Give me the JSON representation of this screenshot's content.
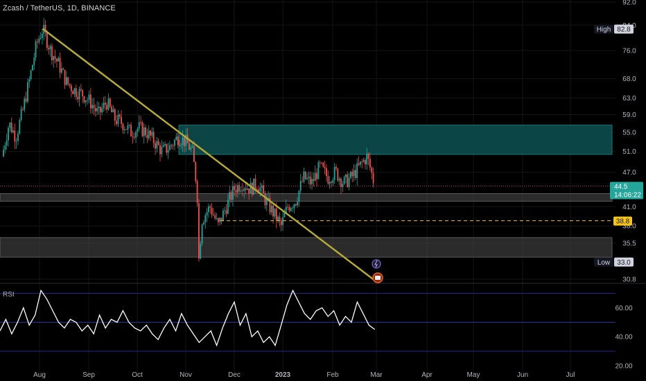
{
  "header": {
    "title": "Zcash / TetherUS, 1D, BINANCE"
  },
  "rsi": {
    "label": "RSI"
  },
  "badges": {
    "high_label": "High",
    "high_value": "82.8",
    "low_label": "Low",
    "low_value": "33.0",
    "last_price": "44.5",
    "countdown": "14:06:22",
    "level_value": "38.8"
  },
  "colors": {
    "background": "#000000",
    "up": "#26a69a",
    "down": "#ef5350",
    "zone_teal": "#0d4d4d",
    "zone_gray": "#3a3a3a",
    "trendline": "#b5a93a",
    "level_line": "#f5c518",
    "rsi_line": "#ffffff",
    "rsi_band_line": "#2c3e9e"
  },
  "chart_data": [
    {
      "type": "candlestick",
      "title": "Zcash / TetherUS, 1D, BINANCE",
      "y_ticks": [
        "92.0",
        "84.0",
        "76.0",
        "68.0",
        "63.0",
        "59.0",
        "55.0",
        "51.0",
        "47.0",
        "41.0",
        "38.0",
        "35.5",
        "30.8"
      ],
      "x_ticks": [
        "Aug",
        "Sep",
        "Oct",
        "Nov",
        "Dec",
        "2023",
        "Feb",
        "Mar",
        "Apr",
        "May",
        "Jun",
        "Jul"
      ],
      "ylim": [
        30.8,
        92.0
      ],
      "scale": "log",
      "close_path": [
        [
          "Jul 5",
          50
        ],
        [
          "Jul 10",
          57
        ],
        [
          "Jul 15",
          54
        ],
        [
          "Jul 20",
          60
        ],
        [
          "Jul 25",
          68
        ],
        [
          "Jul 30",
          78
        ],
        [
          "Aug 3",
          82.8
        ],
        [
          "Aug 8",
          76
        ],
        [
          "Aug 13",
          72
        ],
        [
          "Aug 18",
          67
        ],
        [
          "Aug 23",
          65
        ],
        [
          "Aug 28",
          64
        ],
        [
          "Sep 2",
          62
        ],
        [
          "Sep 7",
          59
        ],
        [
          "Sep 12",
          62
        ],
        [
          "Sep 17",
          58
        ],
        [
          "Sep 22",
          57
        ],
        [
          "Sep 27",
          55
        ],
        [
          "Oct 2",
          56
        ],
        [
          "Oct 7",
          55
        ],
        [
          "Oct 12",
          53
        ],
        [
          "Oct 17",
          51
        ],
        [
          "Oct 22",
          52
        ],
        [
          "Oct 27",
          54
        ],
        [
          "Nov 1",
          53
        ],
        [
          "Nov 5",
          51
        ],
        [
          "Nov 8",
          44
        ],
        [
          "Nov 9",
          33
        ],
        [
          "Nov 11",
          39
        ],
        [
          "Nov 16",
          41
        ],
        [
          "Nov 21",
          38
        ],
        [
          "Nov 26",
          41
        ],
        [
          "Dec 1",
          44
        ],
        [
          "Dec 6",
          45
        ],
        [
          "Dec 11",
          44
        ],
        [
          "Dec 16",
          45
        ],
        [
          "Dec 21",
          42
        ],
        [
          "Dec 26",
          40
        ],
        [
          "Dec 31",
          38
        ],
        [
          "Jan 4",
          41
        ],
        [
          "Jan 9",
          42
        ],
        [
          "Jan 14",
          46
        ],
        [
          "Jan 19",
          45
        ],
        [
          "Jan 24",
          48
        ],
        [
          "Jan 29",
          46
        ],
        [
          "Feb 3",
          47
        ],
        [
          "Feb 8",
          45
        ],
        [
          "Feb 13",
          46
        ],
        [
          "Feb 18",
          48
        ],
        [
          "Feb 23",
          50
        ],
        [
          "Feb 28",
          44.5
        ]
      ],
      "high": 82.8,
      "low": 33.0,
      "last": 44.5,
      "horizontal_level": 38.8,
      "trendline": {
        "from": [
          "Aug 3",
          82.8
        ],
        "to": [
          "Mar 1",
          30.5
        ]
      },
      "zones": [
        {
          "name": "resistance-zone",
          "from": 50.4,
          "to": 56.6
        },
        {
          "name": "mid-zone",
          "from": 41.9,
          "to": 43.2
        },
        {
          "name": "support-zone",
          "from": 33.6,
          "to": 36.3
        }
      ],
      "grid": true
    },
    {
      "type": "line",
      "title": "RSI",
      "y_ticks": [
        "60.00",
        "40.00",
        "20.00"
      ],
      "bands": [
        70,
        50,
        30
      ],
      "ylim": [
        18,
        75
      ],
      "series": [
        {
          "values": [
            44,
            52,
            42,
            50,
            60,
            48,
            55,
            72,
            66,
            58,
            50,
            46,
            52,
            50,
            44,
            48,
            42,
            55,
            46,
            52,
            50,
            58,
            50,
            46,
            44,
            48,
            42,
            38,
            46,
            52,
            44,
            56,
            48,
            42,
            36,
            40,
            44,
            34,
            46,
            56,
            64,
            48,
            56,
            40,
            44,
            36,
            40,
            34,
            48,
            62,
            72,
            64,
            56,
            52,
            58,
            60,
            54,
            58,
            48,
            54,
            50,
            64,
            56,
            48,
            45
          ]
        }
      ]
    }
  ]
}
